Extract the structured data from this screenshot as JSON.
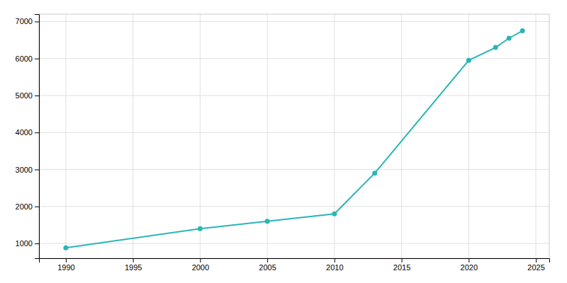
{
  "chart_data": {
    "type": "line",
    "x": [
      1990,
      2000,
      2005,
      2010,
      2013,
      2020,
      2022,
      2023,
      2024
    ],
    "values": [
      880,
      1400,
      1600,
      1800,
      2900,
      5950,
      6300,
      6550,
      6750
    ],
    "color": "#2ab5b5",
    "marker": "circle",
    "xlim": [
      1988,
      2026
    ],
    "ylim": [
      600,
      7200
    ],
    "xticks": [
      1990,
      1995,
      2000,
      2005,
      2010,
      2015,
      2020,
      2025
    ],
    "yticks": [
      1000,
      2000,
      3000,
      4000,
      5000,
      6000,
      7000
    ],
    "grid": true
  }
}
